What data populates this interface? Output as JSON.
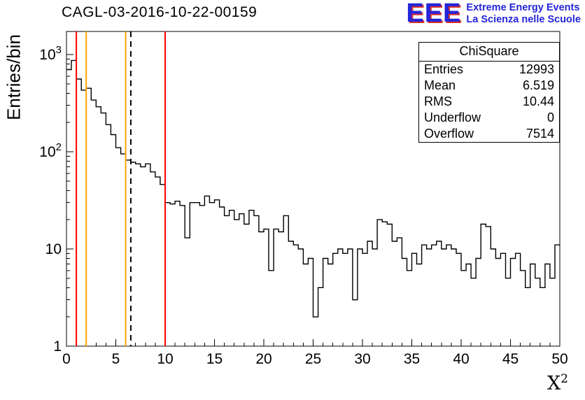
{
  "header": {
    "title": "CAGL-03-2016-10-22-00159",
    "logo": {
      "text": "EEE",
      "line1": "Extreme Energy Events",
      "line2": "La Scienza nelle Scuole",
      "color": "#2525d8",
      "accent": "#d83030"
    }
  },
  "stats": {
    "title": "ChiSquare",
    "rows": [
      {
        "label": "Entries",
        "value": "12993"
      },
      {
        "label": "Mean",
        "value": "6.519"
      },
      {
        "label": "RMS",
        "value": "10.44"
      },
      {
        "label": "Underflow",
        "value": "0"
      },
      {
        "label": "Overflow",
        "value": "7514"
      }
    ]
  },
  "axes": {
    "ylabel": "Entries/bin",
    "xlabel_base": "X",
    "xlabel_exp": "2",
    "x_ticks": [
      0,
      5,
      10,
      15,
      20,
      25,
      30,
      35,
      40,
      45,
      50
    ],
    "y_ticks": [
      "1",
      "10",
      "10^2",
      "10^3"
    ]
  },
  "chart_data": {
    "type": "line",
    "subtype": "step-histogram",
    "title": "CAGL-03-2016-10-22-00159",
    "xlabel": "X^2",
    "ylabel": "Entries/bin",
    "xlim": [
      0,
      50
    ],
    "ylim": [
      1,
      1726
    ],
    "yscale": "log",
    "ylog_max_exp": 3.237,
    "grid": false,
    "bin_width": 0.5,
    "x_start": 0,
    "line_color": "#000000",
    "values": [
      700,
      870,
      560,
      430,
      450,
      340,
      290,
      250,
      190,
      150,
      110,
      95,
      82,
      78,
      75,
      70,
      75,
      62,
      55,
      46,
      30,
      29,
      31,
      28,
      13,
      30,
      30,
      28,
      35,
      30,
      32,
      27,
      22,
      25,
      20,
      23,
      18,
      25,
      22,
      15,
      16,
      6,
      16,
      15,
      22,
      12,
      11,
      10,
      7,
      8,
      2,
      4,
      8,
      7,
      9,
      10,
      9,
      10,
      3,
      10,
      9,
      12,
      10,
      20,
      19,
      18,
      12,
      13,
      8,
      6,
      9,
      7,
      11,
      10,
      11,
      12,
      10,
      11,
      10,
      9,
      6,
      7,
      5,
      8,
      18,
      17,
      10,
      8,
      9,
      5,
      8,
      9,
      6,
      4,
      7,
      5,
      4,
      7,
      5,
      11
    ],
    "vlines": [
      {
        "x": 1,
        "color": "#ff0000",
        "style": "solid"
      },
      {
        "x": 2,
        "color": "#ffa500",
        "style": "solid"
      },
      {
        "x": 6,
        "color": "#ffa500",
        "style": "solid"
      },
      {
        "x": 6.519,
        "color": "#000000",
        "style": "dashed"
      },
      {
        "x": 10,
        "color": "#ff0000",
        "style": "solid"
      }
    ]
  }
}
